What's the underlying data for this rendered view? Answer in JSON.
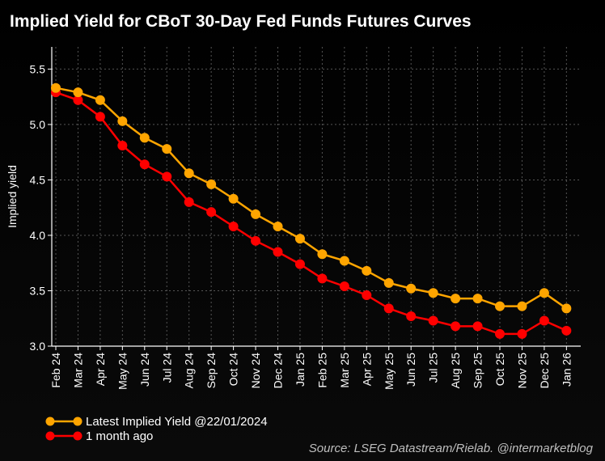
{
  "chart_data": {
    "type": "line",
    "title": "Implied Yield for CBoT 30-Day Fed Funds Futures Curves",
    "ylabel": "Implied yield",
    "xlabel": "",
    "categories": [
      "Feb 24",
      "Mar 24",
      "Apr 24",
      "May 24",
      "Jun 24",
      "Jul 24",
      "Aug 24",
      "Sep 24",
      "Oct 24",
      "Nov 24",
      "Dec 24",
      "Jan 25",
      "Feb 25",
      "Mar 25",
      "Apr 25",
      "May 25",
      "Jun 25",
      "Jul 25",
      "Aug 25",
      "Sep 25",
      "Oct 25",
      "Nov 25",
      "Dec 25",
      "Jan 26"
    ],
    "ylim": [
      3.0,
      5.7
    ],
    "yticks": [
      "3.0",
      "3.5",
      "4.0",
      "4.5",
      "5.0",
      "5.5"
    ],
    "grid": true,
    "legend_position": "bottom-left",
    "series": [
      {
        "name": "Latest Implied Yield @22/01/2024",
        "color": "#FFA500",
        "values": [
          5.33,
          5.29,
          5.22,
          5.03,
          4.88,
          4.78,
          4.56,
          4.46,
          4.33,
          4.19,
          4.08,
          3.97,
          3.83,
          3.77,
          3.68,
          3.57,
          3.52,
          3.48,
          3.43,
          3.43,
          3.36,
          3.36,
          3.48,
          3.34
        ]
      },
      {
        "name": "1 month ago",
        "color": "#FF0000",
        "values": [
          5.29,
          5.22,
          5.07,
          4.81,
          4.64,
          4.53,
          4.3,
          4.21,
          4.08,
          3.95,
          3.85,
          3.74,
          3.61,
          3.54,
          3.46,
          3.34,
          3.27,
          3.23,
          3.18,
          3.18,
          3.11,
          3.11,
          3.23,
          3.14
        ]
      }
    ],
    "source": "Source: LSEG Datastream/Rielab. @intermarketblog"
  }
}
